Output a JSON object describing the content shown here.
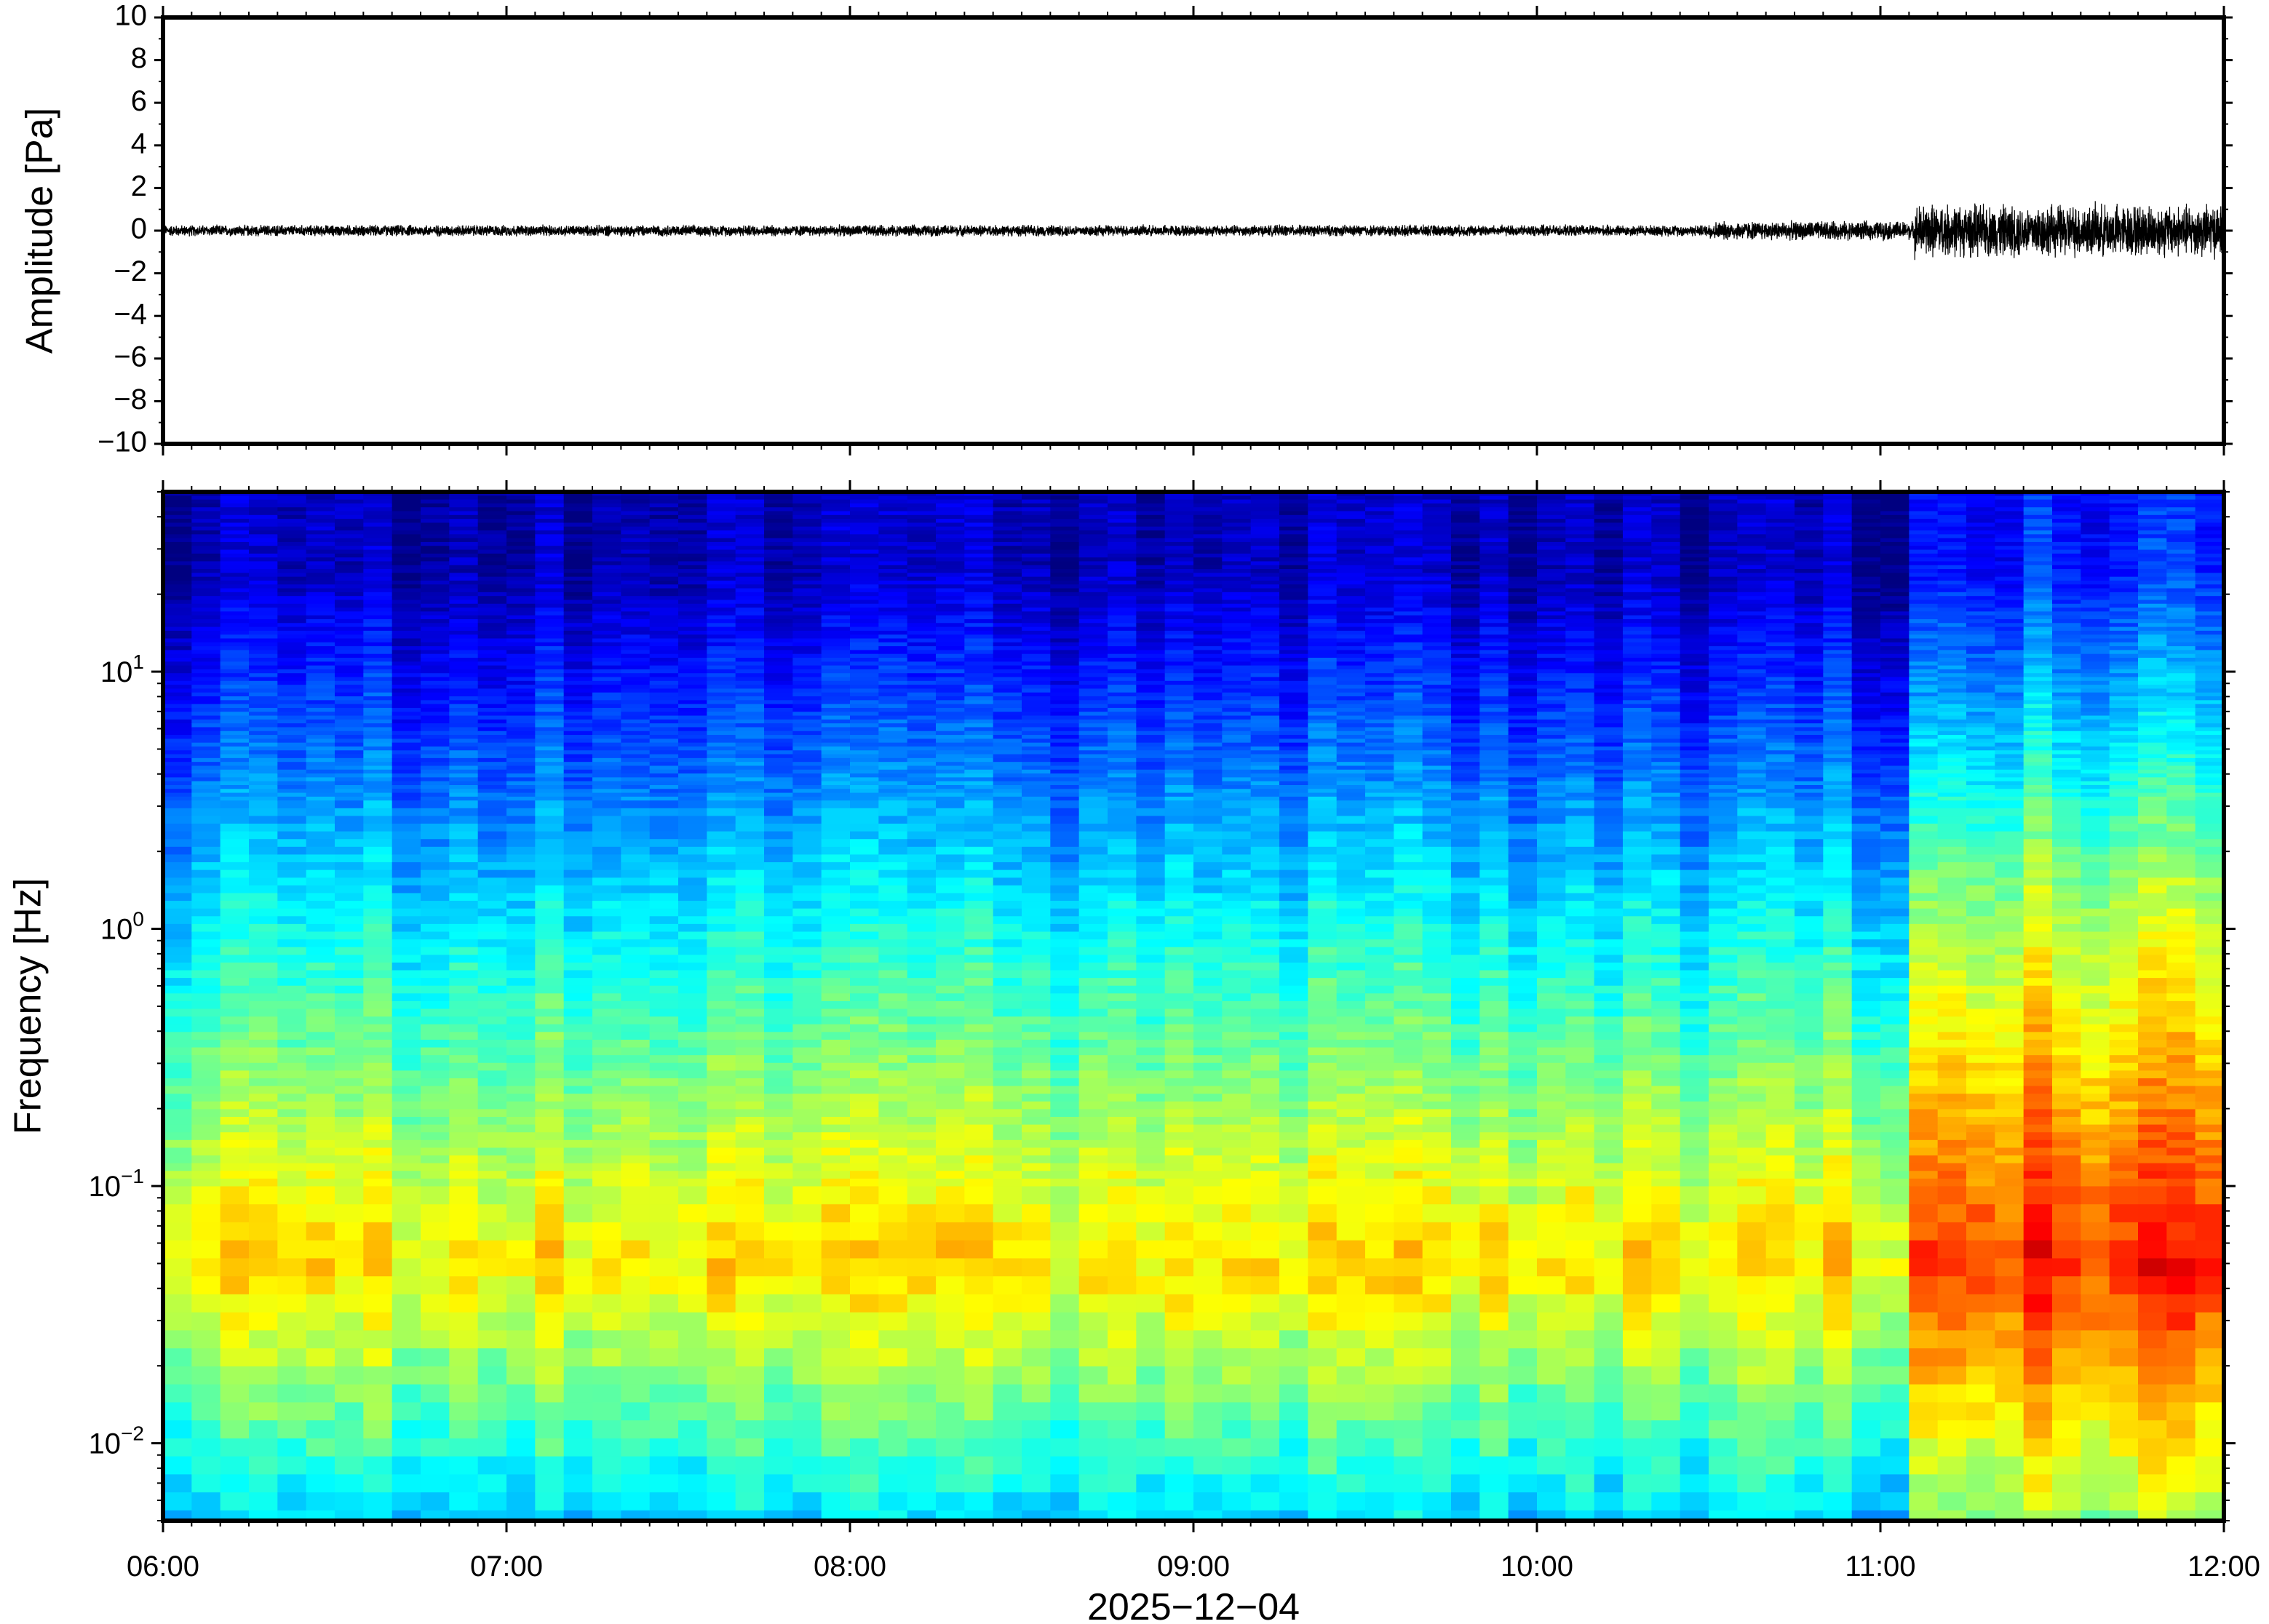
{
  "chart_data": [
    {
      "type": "line",
      "ylabel": "Amplitude [Pa]",
      "ylim": [
        -10,
        10
      ],
      "yticks": [
        10,
        8,
        6,
        4,
        2,
        0,
        -2,
        -4,
        -6,
        -8,
        -10
      ],
      "ytick_labels": [
        "10",
        "8",
        "6",
        "4",
        "2",
        "0",
        "−2",
        "−4",
        "−6",
        "−8",
        "−10"
      ],
      "x_range_hours": [
        6,
        12
      ],
      "series": [
        {
          "color": "#000000",
          "segments": [
            {
              "start_hour": 6.0,
              "end_hour": 10.5,
              "peak_amplitude": 0.3
            },
            {
              "start_hour": 10.5,
              "end_hour": 11.1,
              "peak_amplitude": 0.5
            },
            {
              "start_hour": 11.1,
              "end_hour": 12.0,
              "peak_amplitude": 1.4
            }
          ]
        }
      ],
      "grid": false
    },
    {
      "type": "heatmap",
      "ylabel": "Frequency [Hz]",
      "yscale": "log",
      "ylim": [
        0.005,
        50
      ],
      "yticks": [
        0.01,
        0.1,
        1,
        10
      ],
      "ytick_labels": [
        {
          "base": "10",
          "exp": "−2"
        },
        {
          "base": "10",
          "exp": "−1"
        },
        {
          "base": "10",
          "exp": "0"
        },
        {
          "base": "10",
          "exp": "1"
        }
      ],
      "colormap": "jet",
      "description_of_pattern": {
        "background_high_freq": "dark blue",
        "low_freq_band": "yellow-orange",
        "event_start_hour": 11.1,
        "event_low_freq_color": "red"
      },
      "xlabel": "2025−12−04",
      "xticks": [
        "06:00",
        "07:00",
        "08:00",
        "09:00",
        "10:00",
        "11:00",
        "12:00"
      ],
      "grid": false
    }
  ]
}
